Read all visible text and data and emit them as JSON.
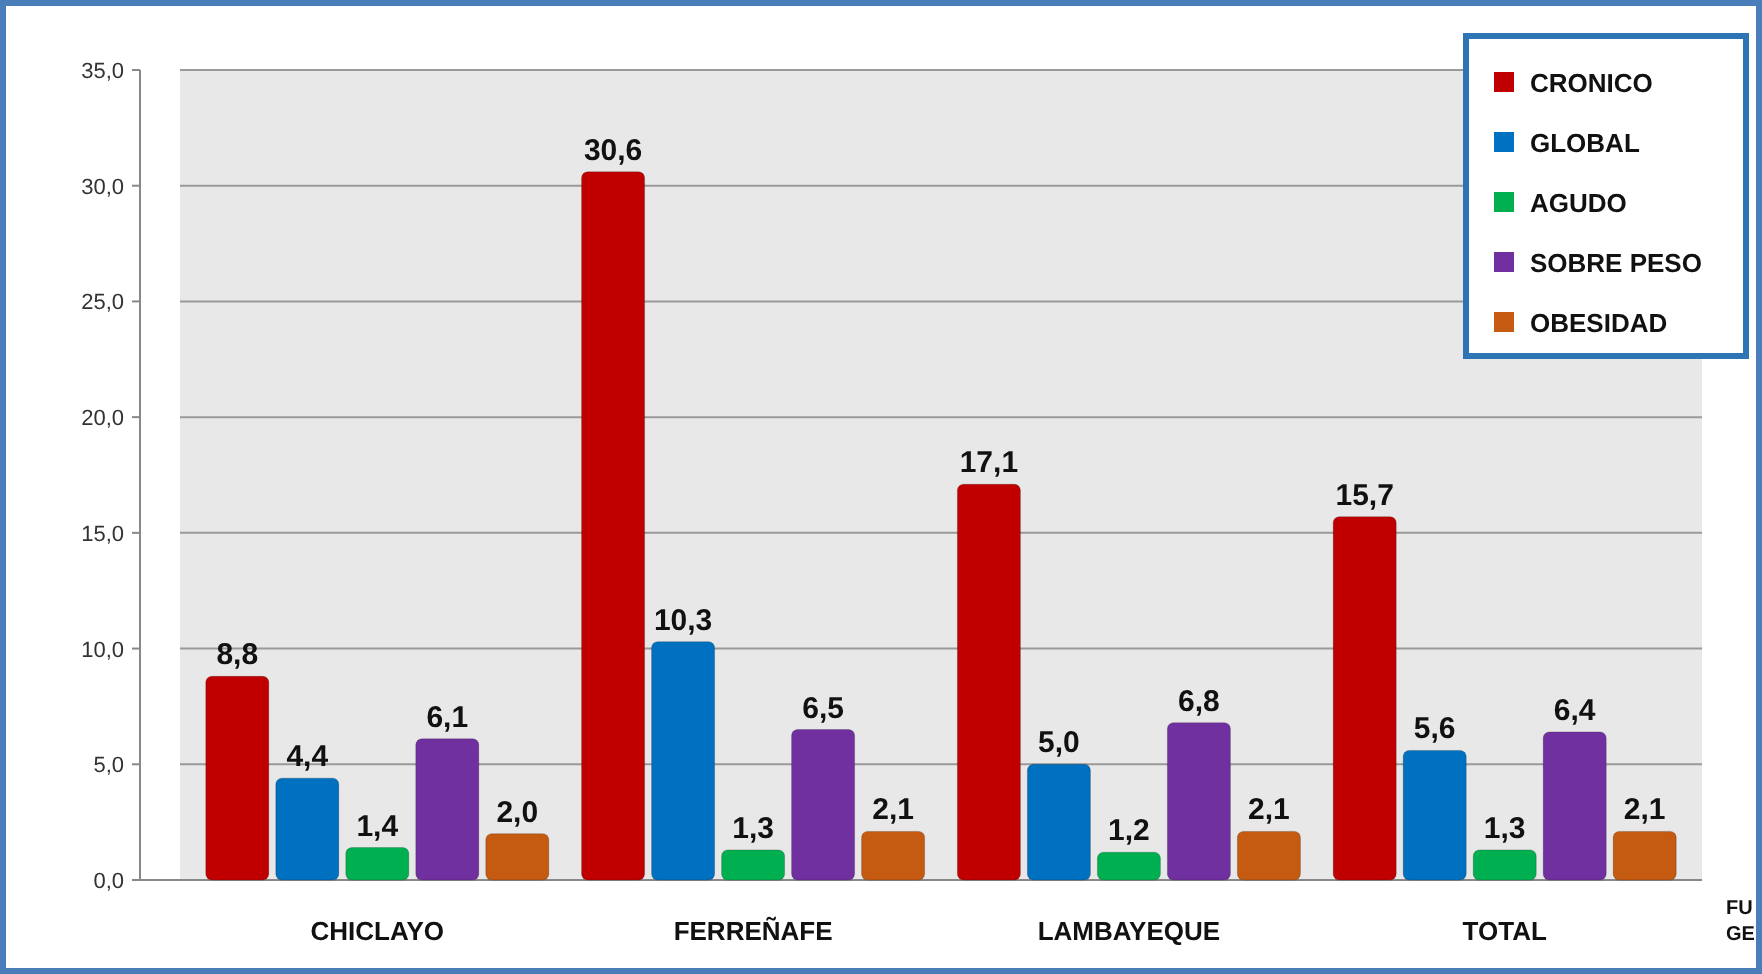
{
  "chart_data": {
    "type": "bar",
    "categories": [
      "CHICLAYO",
      "FERREÑAFE",
      "LAMBAYEQUE",
      "TOTAL"
    ],
    "series": [
      {
        "name": "CRONICO",
        "color": "#c00000",
        "values": [
          8.8,
          30.6,
          17.1,
          15.7
        ],
        "value_labels": [
          "8,8",
          "30,6",
          "17,1",
          "15,7"
        ]
      },
      {
        "name": "GLOBAL",
        "color": "#0070c0",
        "values": [
          4.4,
          10.3,
          5.0,
          5.6
        ],
        "value_labels": [
          "4,4",
          "10,3",
          "5,0",
          "5,6"
        ]
      },
      {
        "name": "AGUDO",
        "color": "#00b050",
        "values": [
          1.4,
          1.3,
          1.2,
          1.3
        ],
        "value_labels": [
          "1,4",
          "1,3",
          "1,2",
          "1,3"
        ]
      },
      {
        "name": "SOBRE PESO",
        "color": "#7030a0",
        "values": [
          6.1,
          6.5,
          6.8,
          6.4
        ],
        "value_labels": [
          "6,1",
          "6,5",
          "6,8",
          "6,4"
        ]
      },
      {
        "name": "OBESIDAD",
        "color": "#c55a11",
        "values": [
          2.0,
          2.1,
          2.1,
          2.1
        ],
        "value_labels": [
          "2,0",
          "2,1",
          "2,1",
          "2,1"
        ]
      }
    ],
    "ylim": [
      0,
      35
    ],
    "yticks": [
      {
        "value": 0,
        "label": "0,0"
      },
      {
        "value": 5,
        "label": "5,0"
      },
      {
        "value": 10,
        "label": "10,0"
      },
      {
        "value": 15,
        "label": "15,0"
      },
      {
        "value": 20,
        "label": "20,0"
      },
      {
        "value": 25,
        "label": "25,0"
      },
      {
        "value": 30,
        "label": "30,0"
      },
      {
        "value": 35,
        "label": "35,0"
      }
    ],
    "grid": "y",
    "legend": "top right",
    "annotations": [
      "FU",
      "GE"
    ]
  }
}
